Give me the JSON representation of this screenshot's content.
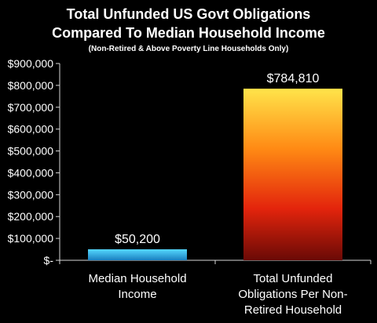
{
  "chart_data": {
    "type": "bar",
    "title": [
      "Total Unfunded US Govt Obligations",
      "Compared To Median Household Income"
    ],
    "subtitle": "(Non-Retired & Above Poverty Line Households Only)",
    "categories": [
      [
        "Median Household",
        "Income"
      ],
      [
        "Total Unfunded",
        "Obligations Per Non-",
        "Retired Household"
      ]
    ],
    "values": [
      50200,
      784810
    ],
    "data_labels": [
      "$50,200",
      "$784,810"
    ],
    "ylim": [
      0,
      900000
    ],
    "yticks": [
      0,
      100000,
      200000,
      300000,
      400000,
      500000,
      600000,
      700000,
      800000,
      900000
    ],
    "ytick_labels": [
      "$-",
      "$100,000",
      "$200,000",
      "$300,000",
      "$400,000",
      "$500,000",
      "$600,000",
      "$700,000",
      "$800,000",
      "$900,000"
    ],
    "grid": false,
    "xlabel": "",
    "ylabel": "",
    "colors": {
      "background": "#000000",
      "axis": "#d9d9d9",
      "text": "#ffffff",
      "bar1_top": "#55d8ff",
      "bar1_bottom": "#1a7fc0",
      "bar2_top": "#ffe44a",
      "bar2_mid": "#ff8a14",
      "bar2_low": "#e3240c",
      "bar2_bottom": "#6a0a06"
    }
  }
}
